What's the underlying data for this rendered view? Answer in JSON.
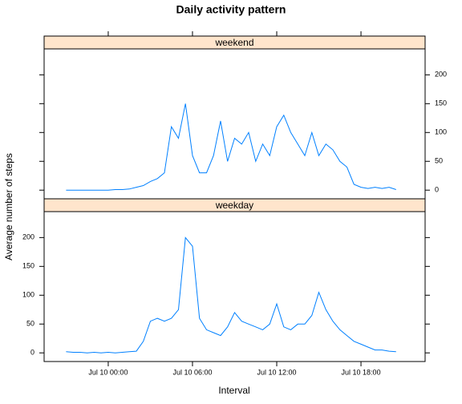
{
  "chart_data": {
    "type": "line",
    "title": "Daily activity pattern",
    "xlabel": "Interval",
    "ylabel": "Average number of steps",
    "x": [
      "Jul 9 21:00",
      "Jul 9 21:30",
      "Jul 9 22:00",
      "Jul 9 22:30",
      "Jul 9 23:00",
      "Jul 9 23:30",
      "Jul 10 00:00",
      "Jul 10 00:30",
      "Jul 10 01:00",
      "Jul 10 01:30",
      "Jul 10 02:00",
      "Jul 10 02:30",
      "Jul 10 03:00",
      "Jul 10 03:30",
      "Jul 10 04:00",
      "Jul 10 04:30",
      "Jul 10 05:00",
      "Jul 10 05:30",
      "Jul 10 06:00",
      "Jul 10 06:30",
      "Jul 10 07:00",
      "Jul 10 07:30",
      "Jul 10 08:00",
      "Jul 10 08:30",
      "Jul 10 09:00",
      "Jul 10 09:30",
      "Jul 10 10:00",
      "Jul 10 10:30",
      "Jul 10 11:00",
      "Jul 10 11:30",
      "Jul 10 12:00",
      "Jul 10 12:30",
      "Jul 10 13:00",
      "Jul 10 13:30",
      "Jul 10 14:00",
      "Jul 10 14:30",
      "Jul 10 15:00",
      "Jul 10 15:30",
      "Jul 10 16:00",
      "Jul 10 16:30",
      "Jul 10 17:00",
      "Jul 10 17:30",
      "Jul 10 18:00",
      "Jul 10 18:30",
      "Jul 10 19:00",
      "Jul 10 19:30",
      "Jul 10 20:00",
      "Jul 10 20:30"
    ],
    "series": [
      {
        "name": "weekend",
        "color": "#0080ff",
        "values": [
          0,
          0,
          0,
          0,
          0,
          0,
          0,
          1,
          1,
          2,
          5,
          8,
          15,
          20,
          30,
          110,
          90,
          150,
          60,
          30,
          30,
          60,
          120,
          50,
          90,
          80,
          100,
          50,
          80,
          60,
          110,
          130,
          100,
          80,
          60,
          100,
          60,
          80,
          70,
          50,
          40,
          10,
          5,
          3,
          5,
          3,
          5,
          1
        ]
      },
      {
        "name": "weekday",
        "color": "#0080ff",
        "values": [
          2,
          1,
          1,
          0,
          1,
          0,
          1,
          0,
          1,
          2,
          3,
          20,
          55,
          60,
          55,
          60,
          75,
          200,
          185,
          60,
          40,
          35,
          30,
          45,
          70,
          55,
          50,
          45,
          40,
          50,
          85,
          45,
          40,
          50,
          50,
          65,
          105,
          75,
          55,
          40,
          30,
          20,
          15,
          10,
          5,
          5,
          3,
          2
        ]
      }
    ],
    "xlim": [
      "Jul 9 19:26",
      "Jul 10 22:34"
    ],
    "xticks": [
      "Jul 10 00:00",
      "Jul 10 06:00",
      "Jul 10 12:00",
      "Jul 10 18:00"
    ],
    "ylim": [
      -15,
      245
    ],
    "yticks": [
      0,
      50,
      100,
      150,
      200
    ],
    "strip_color": "#ffe5cc"
  }
}
